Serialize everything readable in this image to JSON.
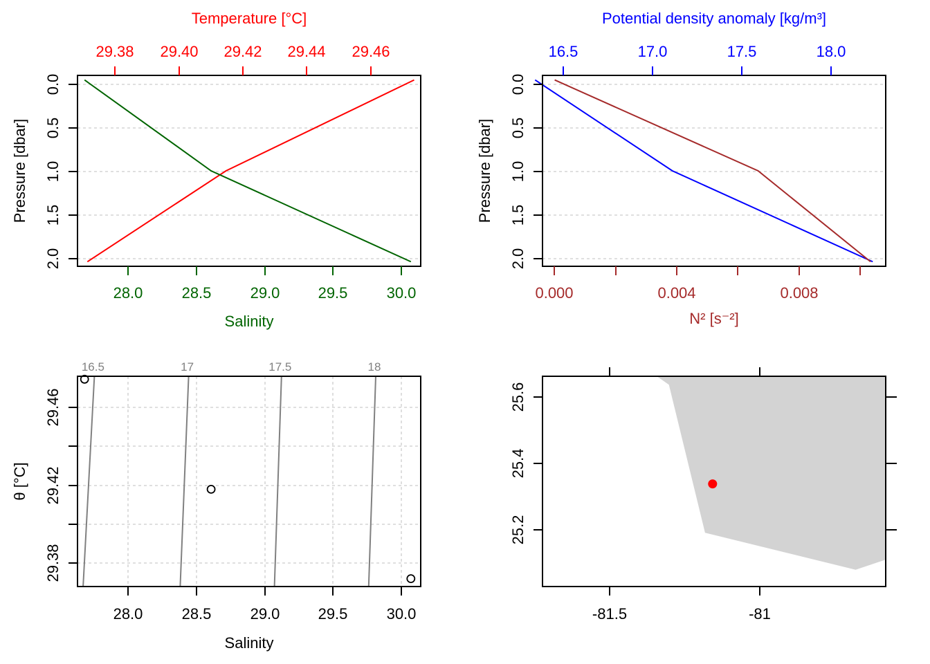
{
  "colors": {
    "temperature": "#ff0000",
    "salinity": "#006400",
    "density": "#0000ff",
    "n2": "#a52a2a",
    "contour": "#808080",
    "land": "#d3d3d3",
    "station": "#ff0000"
  },
  "chart_data": [
    {
      "type": "line",
      "panel": "salinity-temperature-profile",
      "top_axis_label": "Temperature [°C]",
      "top_ticks": [
        "29.38",
        "29.40",
        "29.42",
        "29.44",
        "29.46"
      ],
      "top_lim": [
        29.368,
        29.472
      ],
      "bottom_axis_label": "Salinity",
      "bottom_ticks": [
        "28.0",
        "28.5",
        "29.0",
        "29.5",
        "30.0"
      ],
      "bottom_lim": [
        27.68,
        30.12
      ],
      "ylabel": "Pressure [dbar]",
      "y_ticks": [
        "0.0",
        "0.5",
        "1.0",
        "1.5",
        "2.0"
      ],
      "ylim": [
        2.05,
        -0.05
      ],
      "y_reversed": true,
      "grid": true,
      "series": [
        {
          "name": "Temperature",
          "axis": "top",
          "x": [
            29.47,
            29.413,
            29.371
          ],
          "y": [
            0,
            1,
            2
          ]
        },
        {
          "name": "Salinity",
          "axis": "bottom",
          "x": [
            27.73,
            28.63,
            30.05
          ],
          "y": [
            0,
            1,
            2
          ]
        }
      ]
    },
    {
      "type": "line",
      "panel": "density-n2-profile",
      "top_axis_label": "Potential density anomaly [kg/m³]",
      "top_ticks": [
        "16.5",
        "17.0",
        "17.5",
        "18.0"
      ],
      "top_lim": [
        16.45,
        18.3
      ],
      "bottom_axis_label": "N² [s⁻²]",
      "bottom_ticks": [
        "0.000",
        "0.004",
        "0.008"
      ],
      "bottom_lim": [
        -0.0004,
        0.0109
      ],
      "ylabel": "Pressure [dbar]",
      "y_ticks": [
        "0.0",
        "0.5",
        "1.0",
        "1.5",
        "2.0"
      ],
      "ylim": [
        2.05,
        -0.05
      ],
      "y_reversed": true,
      "grid": true,
      "series": [
        {
          "name": "Potential density anomaly",
          "axis": "top",
          "x": [
            16.41,
            17.15,
            18.23
          ],
          "y": [
            0,
            1,
            2
          ]
        },
        {
          "name": "N²",
          "axis": "bottom",
          "x": [
            0.0,
            0.0067,
            0.0104
          ],
          "y": [
            0,
            1,
            2
          ]
        }
      ]
    },
    {
      "type": "scatter",
      "panel": "ts-diagram",
      "xlabel": "Salinity",
      "x_ticks": [
        "28.0",
        "28.5",
        "29.0",
        "29.5",
        "30.0"
      ],
      "xlim": [
        27.68,
        30.12
      ],
      "ylabel": "θ [°C]",
      "y_ticks": [
        "29.38",
        "29.42",
        "29.46"
      ],
      "ylim": [
        29.367,
        29.474
      ],
      "grid": true,
      "points": [
        {
          "x": 27.73,
          "y": 29.4725
        },
        {
          "x": 28.63,
          "y": 29.4165
        },
        {
          "x": 30.05,
          "y": 29.371
        }
      ],
      "contours": [
        {
          "label": "16.5",
          "top_x": 27.8,
          "bottom_x": 27.72
        },
        {
          "label": "17",
          "top_x": 28.47,
          "bottom_x": 28.41
        },
        {
          "label": "17.5",
          "top_x": 29.13,
          "bottom_x": 29.08
        },
        {
          "label": "18",
          "top_x": 29.8,
          "bottom_x": 29.75
        }
      ]
    },
    {
      "type": "map",
      "panel": "station-map",
      "x_ticks": [
        "-81.5",
        "-81"
      ],
      "xlim": [
        -81.72,
        -80.58
      ],
      "y_ticks": [
        "25.2",
        "25.4",
        "25.6"
      ],
      "ylim": [
        25.04,
        25.665
      ],
      "land_lonlat": [
        [
          -81.34,
          25.665
        ],
        [
          -81.3,
          25.64
        ],
        [
          -81.18,
          25.2
        ],
        [
          -80.68,
          25.09
        ],
        [
          -80.58,
          25.12
        ],
        [
          -80.58,
          25.665
        ]
      ],
      "station": {
        "lon": -81.155,
        "lat": 25.345
      }
    }
  ]
}
